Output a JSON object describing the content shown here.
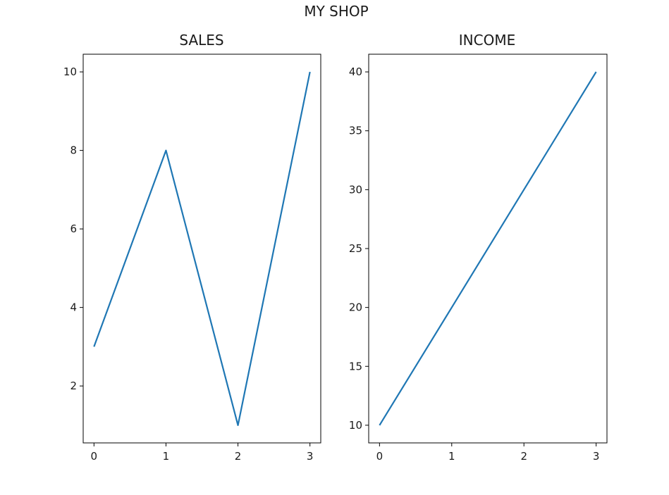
{
  "figure": {
    "suptitle": "MY SHOP"
  },
  "chart_data": [
    {
      "type": "line",
      "title": "SALES",
      "xlabel": "",
      "ylabel": "",
      "x": [
        0,
        1,
        2,
        3
      ],
      "series": [
        {
          "values": [
            3,
            8,
            1,
            10
          ],
          "color": "#1f77b4"
        }
      ],
      "xlim": [
        -0.15,
        3.15
      ],
      "ylim": [
        0.55,
        10.45
      ],
      "xticks": [
        0,
        1,
        2,
        3
      ],
      "yticks": [
        2,
        4,
        6,
        8,
        10
      ],
      "grid": false
    },
    {
      "type": "line",
      "title": "INCOME",
      "xlabel": "",
      "ylabel": "",
      "x": [
        0,
        1,
        2,
        3
      ],
      "series": [
        {
          "values": [
            10,
            20,
            30,
            40
          ],
          "color": "#1f77b4"
        }
      ],
      "xlim": [
        -0.15,
        3.15
      ],
      "ylim": [
        8.5,
        41.5
      ],
      "xticks": [
        0,
        1,
        2,
        3
      ],
      "yticks": [
        10,
        15,
        20,
        25,
        30,
        35,
        40
      ],
      "grid": false
    }
  ]
}
